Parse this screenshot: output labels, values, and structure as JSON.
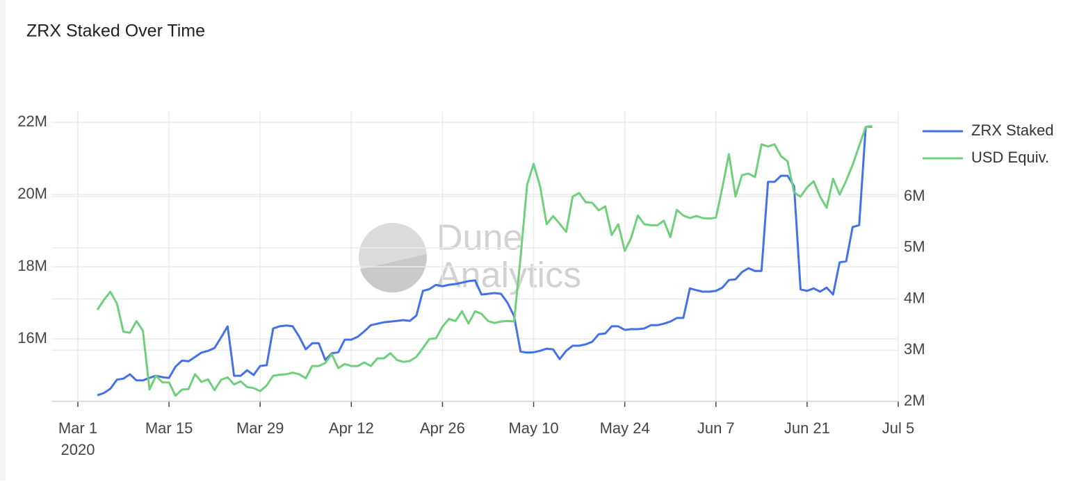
{
  "chart_data": {
    "type": "line",
    "title": "ZRX Staked Over Time",
    "watermark": [
      "Dune",
      "Analytics"
    ],
    "x_year_label": "2020",
    "xlim": [
      "2020-02-26",
      "2020-07-05"
    ],
    "xticks": [
      {
        "value": "2020-03-01",
        "label": "Mar 1"
      },
      {
        "value": "2020-03-15",
        "label": "Mar 15"
      },
      {
        "value": "2020-03-29",
        "label": "Mar 29"
      },
      {
        "value": "2020-04-12",
        "label": "Apr 12"
      },
      {
        "value": "2020-04-26",
        "label": "Apr 26"
      },
      {
        "value": "2020-05-10",
        "label": "May 10"
      },
      {
        "value": "2020-05-24",
        "label": "May 24"
      },
      {
        "value": "2020-06-07",
        "label": "Jun 7"
      },
      {
        "value": "2020-06-21",
        "label": "Jun 21"
      },
      {
        "value": "2020-07-05",
        "label": "Jul 5"
      }
    ],
    "ylim": [
      14.27,
      22.31
    ],
    "yticks": [
      {
        "value": 16,
        "label": "16M"
      },
      {
        "value": 18,
        "label": "18M"
      },
      {
        "value": 20,
        "label": "20M"
      },
      {
        "value": 22,
        "label": "22M"
      }
    ],
    "y2lim": [
      2,
      7.67
    ],
    "y2ticks": [
      {
        "value": 2,
        "label": "2M"
      },
      {
        "value": 3,
        "label": "3M"
      },
      {
        "value": 4,
        "label": "4M"
      },
      {
        "value": 5,
        "label": "5M"
      },
      {
        "value": 6,
        "label": "6M"
      }
    ],
    "grid": true,
    "legend": "right",
    "start": "2020-03-04",
    "series": [
      {
        "name": "ZRX Staked",
        "color": "#4471e8",
        "axis": "y",
        "values": [
          14.44,
          14.5,
          14.62,
          14.87,
          14.9,
          15.02,
          14.85,
          14.85,
          14.92,
          14.98,
          14.94,
          14.92,
          15.23,
          15.4,
          15.38,
          15.5,
          15.62,
          15.67,
          15.75,
          16.04,
          16.35,
          14.98,
          14.98,
          15.13,
          15,
          15.25,
          15.27,
          16.29,
          16.35,
          16.37,
          16.35,
          16.06,
          15.71,
          15.88,
          15.88,
          15.42,
          15.6,
          15.63,
          15.98,
          15.98,
          16.06,
          16.21,
          16.38,
          16.42,
          16.46,
          16.48,
          16.5,
          16.52,
          16.5,
          16.65,
          17.33,
          17.38,
          17.5,
          17.46,
          17.5,
          17.52,
          17.56,
          17.6,
          17.62,
          17.23,
          17.25,
          17.27,
          17.25,
          17,
          16.63,
          15.65,
          15.62,
          15.63,
          15.67,
          15.73,
          15.71,
          15.44,
          15.67,
          15.81,
          15.81,
          15.85,
          15.92,
          16.13,
          16.15,
          16.35,
          16.35,
          16.25,
          16.27,
          16.27,
          16.29,
          16.38,
          16.38,
          16.42,
          16.48,
          16.58,
          16.58,
          17.4,
          17.35,
          17.31,
          17.31,
          17.33,
          17.42,
          17.63,
          17.65,
          17.85,
          17.96,
          17.88,
          17.88,
          20.35,
          20.35,
          20.52,
          20.52,
          20.23,
          17.37,
          17.33,
          17.4,
          17.31,
          17.42,
          17.23,
          18.12,
          18.15,
          19.1,
          19.15,
          21.87,
          21.88
        ]
      },
      {
        "name": "USD Equiv.",
        "color": "#6fd07c",
        "axis": "y2",
        "values": [
          3.79,
          3.98,
          4.14,
          3.91,
          3.36,
          3.34,
          3.57,
          3.38,
          2.23,
          2.5,
          2.37,
          2.37,
          2.11,
          2.23,
          2.24,
          2.53,
          2.38,
          2.43,
          2.22,
          2.42,
          2.47,
          2.33,
          2.39,
          2.28,
          2.26,
          2.2,
          2.31,
          2.5,
          2.52,
          2.53,
          2.56,
          2.53,
          2.45,
          2.69,
          2.69,
          2.75,
          2.92,
          2.65,
          2.73,
          2.69,
          2.69,
          2.76,
          2.69,
          2.84,
          2.84,
          2.94,
          2.81,
          2.77,
          2.79,
          2.87,
          3.04,
          3.22,
          3.23,
          3.46,
          3.61,
          3.57,
          3.76,
          3.52,
          3.76,
          3.71,
          3.57,
          3.53,
          3.56,
          3.57,
          3.56,
          4.82,
          6.23,
          6.64,
          6.2,
          5.46,
          5.62,
          5.47,
          5.31,
          6,
          6.07,
          5.89,
          5.88,
          5.73,
          5.81,
          5.25,
          5.46,
          4.94,
          5.2,
          5.63,
          5.46,
          5.44,
          5.44,
          5.53,
          5.21,
          5.74,
          5.63,
          5.58,
          5.62,
          5.58,
          5.57,
          5.59,
          6.18,
          6.83,
          6,
          6.42,
          6.45,
          6.38,
          7.02,
          6.98,
          7.02,
          6.79,
          6.69,
          6.08,
          6,
          6.18,
          6.3,
          6,
          5.78,
          6.35,
          6.04,
          6.31,
          6.62,
          6.99,
          7.36,
          7.38
        ]
      }
    ]
  }
}
